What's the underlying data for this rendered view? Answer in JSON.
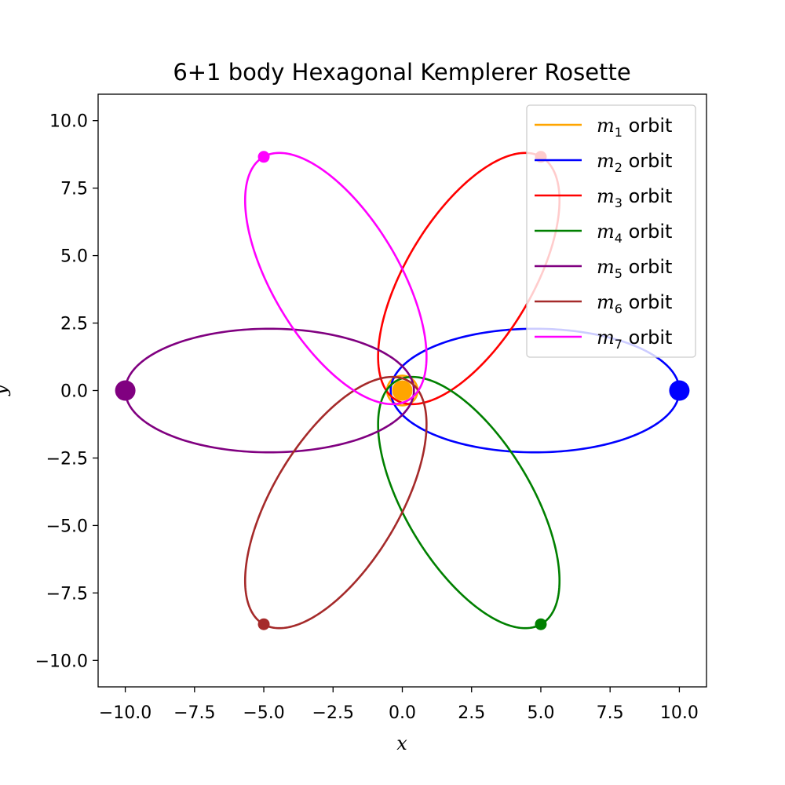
{
  "chart_data": {
    "type": "line",
    "title": "6+1 body Hexagonal Kemplerer Rosette",
    "xlabel": "x",
    "ylabel": "y",
    "xlim": [
      -10.98,
      10.98
    ],
    "ylim": [
      -10.98,
      10.98
    ],
    "xticks": [
      -10.0,
      -7.5,
      -5.0,
      -2.5,
      0.0,
      2.5,
      5.0,
      7.5,
      10.0
    ],
    "yticks": [
      -10.0,
      -7.5,
      -5.0,
      -2.5,
      0.0,
      2.5,
      5.0,
      7.5,
      10.0
    ],
    "xtick_labels": [
      "−10.0",
      "−7.5",
      "−5.0",
      "−2.5",
      "0.0",
      "2.5",
      "5.0",
      "7.5",
      "10.0"
    ],
    "ytick_labels": [
      "−10.0",
      "−7.5",
      "−5.0",
      "−2.5",
      "0.0",
      "2.5",
      "5.0",
      "7.5",
      "10.0"
    ],
    "grid": false,
    "legend_position": "top-right",
    "series": [
      {
        "name": "m1",
        "sub": "1",
        "suffix": " orbit",
        "color": "#FFA500",
        "ellipse": {
          "center": [
            0,
            0
          ],
          "semi_major": 0.55,
          "semi_minor": 0.55,
          "angle_deg": 0
        },
        "marker": [
          0.0,
          0.0
        ],
        "marker_size": "large"
      },
      {
        "name": "m2",
        "sub": "2",
        "suffix": " orbit",
        "color": "#0000FF",
        "ellipse": {
          "center": [
            4.79,
            0
          ],
          "semi_major": 5.21,
          "semi_minor": 2.29,
          "angle_deg": 0
        },
        "marker": [
          10.0,
          0.0
        ],
        "marker_size": "large"
      },
      {
        "name": "m3",
        "sub": "3",
        "suffix": " orbit",
        "color": "#FF0000",
        "ellipse": {
          "center": [
            2.4,
            4.15
          ],
          "semi_major": 5.21,
          "semi_minor": 2.29,
          "angle_deg": 60
        },
        "marker": [
          5.0,
          8.66
        ],
        "marker_size": "small"
      },
      {
        "name": "m4",
        "sub": "4",
        "suffix": " orbit",
        "color": "#008000",
        "ellipse": {
          "center": [
            2.4,
            -4.15
          ],
          "semi_major": 5.21,
          "semi_minor": 2.29,
          "angle_deg": -60
        },
        "marker": [
          5.0,
          -8.66
        ],
        "marker_size": "small"
      },
      {
        "name": "m5",
        "sub": "5",
        "suffix": " orbit",
        "color": "#800080",
        "ellipse": {
          "center": [
            -4.79,
            0
          ],
          "semi_major": 5.21,
          "semi_minor": 2.29,
          "angle_deg": 180
        },
        "marker": [
          -10.0,
          0.0
        ],
        "marker_size": "large"
      },
      {
        "name": "m6",
        "sub": "6",
        "suffix": " orbit",
        "color": "#A52A2A",
        "ellipse": {
          "center": [
            -2.4,
            -4.15
          ],
          "semi_major": 5.21,
          "semi_minor": 2.29,
          "angle_deg": 240
        },
        "marker": [
          -5.0,
          -8.66
        ],
        "marker_size": "small"
      },
      {
        "name": "m7",
        "sub": "7",
        "suffix": " orbit",
        "color": "#FF00FF",
        "ellipse": {
          "center": [
            -2.4,
            4.15
          ],
          "semi_major": 5.21,
          "semi_minor": 2.29,
          "angle_deg": 120
        },
        "marker": [
          -5.0,
          8.66
        ],
        "marker_size": "small"
      }
    ]
  }
}
